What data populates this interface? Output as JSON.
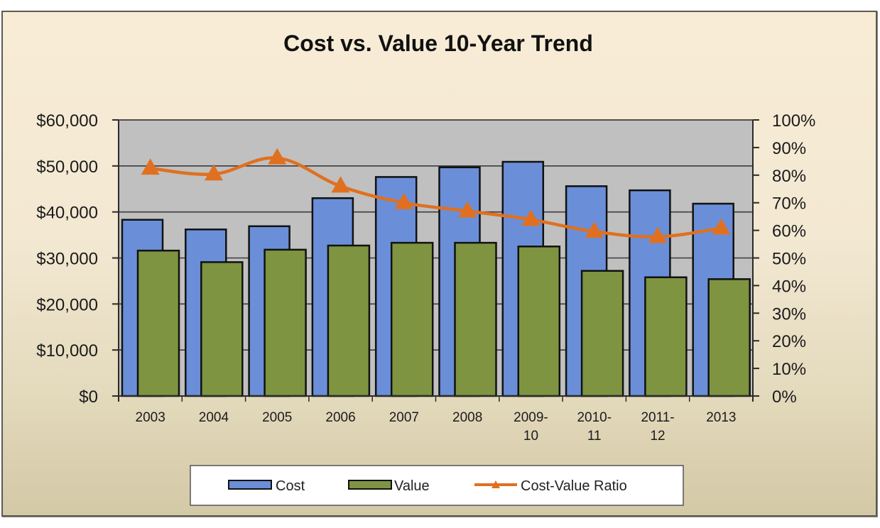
{
  "chart_data": {
    "type": "bar",
    "title": "Cost vs. Value 10-Year Trend",
    "xlabel": "",
    "ylabel": "",
    "y2label": "",
    "categories": [
      [
        "2003"
      ],
      [
        "2004"
      ],
      [
        "2005"
      ],
      [
        "2006"
      ],
      [
        "2007"
      ],
      [
        "2008"
      ],
      [
        "2009-",
        "10"
      ],
      [
        "2010-",
        "11"
      ],
      [
        "2011-",
        "12"
      ],
      [
        "2013"
      ]
    ],
    "category_names": [
      "2003",
      "2004",
      "2005",
      "2006",
      "2007",
      "2008",
      "2009-10",
      "2010-11",
      "2011-12",
      "2013"
    ],
    "series": [
      {
        "name": "Cost",
        "type": "bar",
        "axis": "left",
        "color": "#6a8fd8",
        "values": [
          38300,
          36200,
          36900,
          43000,
          47600,
          49700,
          50900,
          45600,
          44700,
          41800
        ]
      },
      {
        "name": "Value",
        "type": "bar",
        "axis": "left",
        "color": "#7e9441",
        "values": [
          31600,
          29100,
          31800,
          32700,
          33300,
          33300,
          32500,
          27200,
          25800,
          25400
        ]
      },
      {
        "name": "Cost-Value Ratio",
        "type": "line",
        "axis": "right",
        "color": "#e07020",
        "marker": "triangle",
        "values": [
          0.825,
          0.804,
          0.862,
          0.76,
          0.7,
          0.67,
          0.639,
          0.596,
          0.577,
          0.608
        ]
      }
    ],
    "ylim": [
      0,
      60000
    ],
    "y2lim": [
      0,
      1.0
    ],
    "yticks": [
      "$60,000",
      "$50,000",
      "$40,000",
      "$30,000",
      "$20,000",
      "$10,000",
      "$0"
    ],
    "ytick_values": [
      60000,
      50000,
      40000,
      30000,
      20000,
      10000,
      0
    ],
    "y2ticks": [
      "100%",
      "90%",
      "80%",
      "70%",
      "60%",
      "50%",
      "40%",
      "30%",
      "20%",
      "10%",
      "0%"
    ],
    "y2tick_values": [
      1.0,
      0.9,
      0.8,
      0.7,
      0.6,
      0.5,
      0.4,
      0.3,
      0.2,
      0.1,
      0.0
    ],
    "grid": true,
    "plot_background": "#c0c0c0",
    "legend": {
      "placement": "bottom",
      "entries": [
        "Cost",
        "Value",
        "Cost-Value Ratio"
      ]
    }
  }
}
